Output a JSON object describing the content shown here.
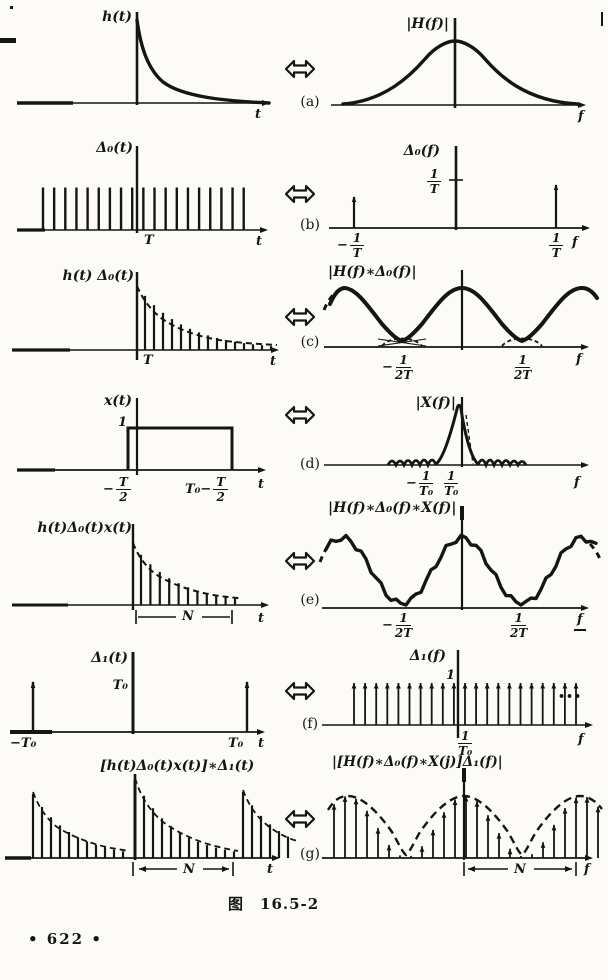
{
  "figure": {
    "caption_label": "图",
    "caption_number": "16.5-2",
    "page_number": "• 622 •"
  },
  "rows": [
    {
      "label": "(a)",
      "left": {
        "title": "h(t)",
        "axis_label": "t"
      },
      "right": {
        "title": "|H(f)|",
        "axis_label": "f"
      }
    },
    {
      "label": "(b)",
      "left": {
        "title": "Δ₀(t)",
        "axis_label": "t",
        "tick": "T"
      },
      "right": {
        "title": "Δ₀(f)",
        "axis_label": "f",
        "height_frac": {
          "num": "1",
          "den": "T"
        },
        "tick_neg": {
          "prefix": "−",
          "num": "1",
          "den": "T"
        },
        "tick_pos": {
          "num": "1",
          "den": "T"
        }
      }
    },
    {
      "label": "(c)",
      "left": {
        "title": "h(t) Δ₀(t)",
        "axis_label": "t",
        "tick": "T"
      },
      "right": {
        "title": "|H(f)∗Δ₀(f)|",
        "axis_label": "f",
        "tick_neg": {
          "prefix": "−",
          "num": "1",
          "den": "2T"
        },
        "tick_pos": {
          "num": "1",
          "den": "2T"
        }
      }
    },
    {
      "label": "(d)",
      "left": {
        "title": "x(t)",
        "axis_label": "t",
        "height_label": "1",
        "tick_neg": {
          "prefix": "−",
          "num": "T",
          "den": "2"
        },
        "tick_pos": {
          "prefix": "T₀−",
          "num": "T",
          "den": "2"
        }
      },
      "right": {
        "title": "|X(f)|",
        "axis_label": "f",
        "tick_neg": {
          "prefix": "−",
          "num": "1",
          "den": "T₀"
        },
        "tick_pos": {
          "num": "1",
          "den": "T₀"
        }
      }
    },
    {
      "label": "(e)",
      "left": {
        "title": "h(t)Δ₀(t)x(t)",
        "axis_label": "t",
        "span_label": "N"
      },
      "right": {
        "title": "|H(f)∗Δ₀(f)∗X(f)|",
        "axis_label": "f",
        "tick_neg": {
          "prefix": "−",
          "num": "1",
          "den": "2T"
        },
        "tick_pos": {
          "num": "1",
          "den": "2T"
        }
      }
    },
    {
      "label": "(f)",
      "left": {
        "title": "Δ₁(t)",
        "axis_label": "t",
        "height_label": "T₀",
        "tick_neg": "−T₀",
        "tick_pos": "T₀"
      },
      "right": {
        "title": "Δ₁(f)",
        "axis_label": "f",
        "height_label": "1",
        "tick_pos": {
          "num": "1",
          "den": "T₀"
        },
        "ellipsis": "•••"
      }
    },
    {
      "label": "(g)",
      "left": {
        "title": "[h(t)Δ₀(t)x(t)]∗Δ₁(t)",
        "axis_label": "t",
        "span_label": "N"
      },
      "right": {
        "title": "|[H(f)∗Δ₀(f)∗X(j)]Δ₁(f)|",
        "axis_label": "f",
        "span_label": "N"
      }
    }
  ]
}
